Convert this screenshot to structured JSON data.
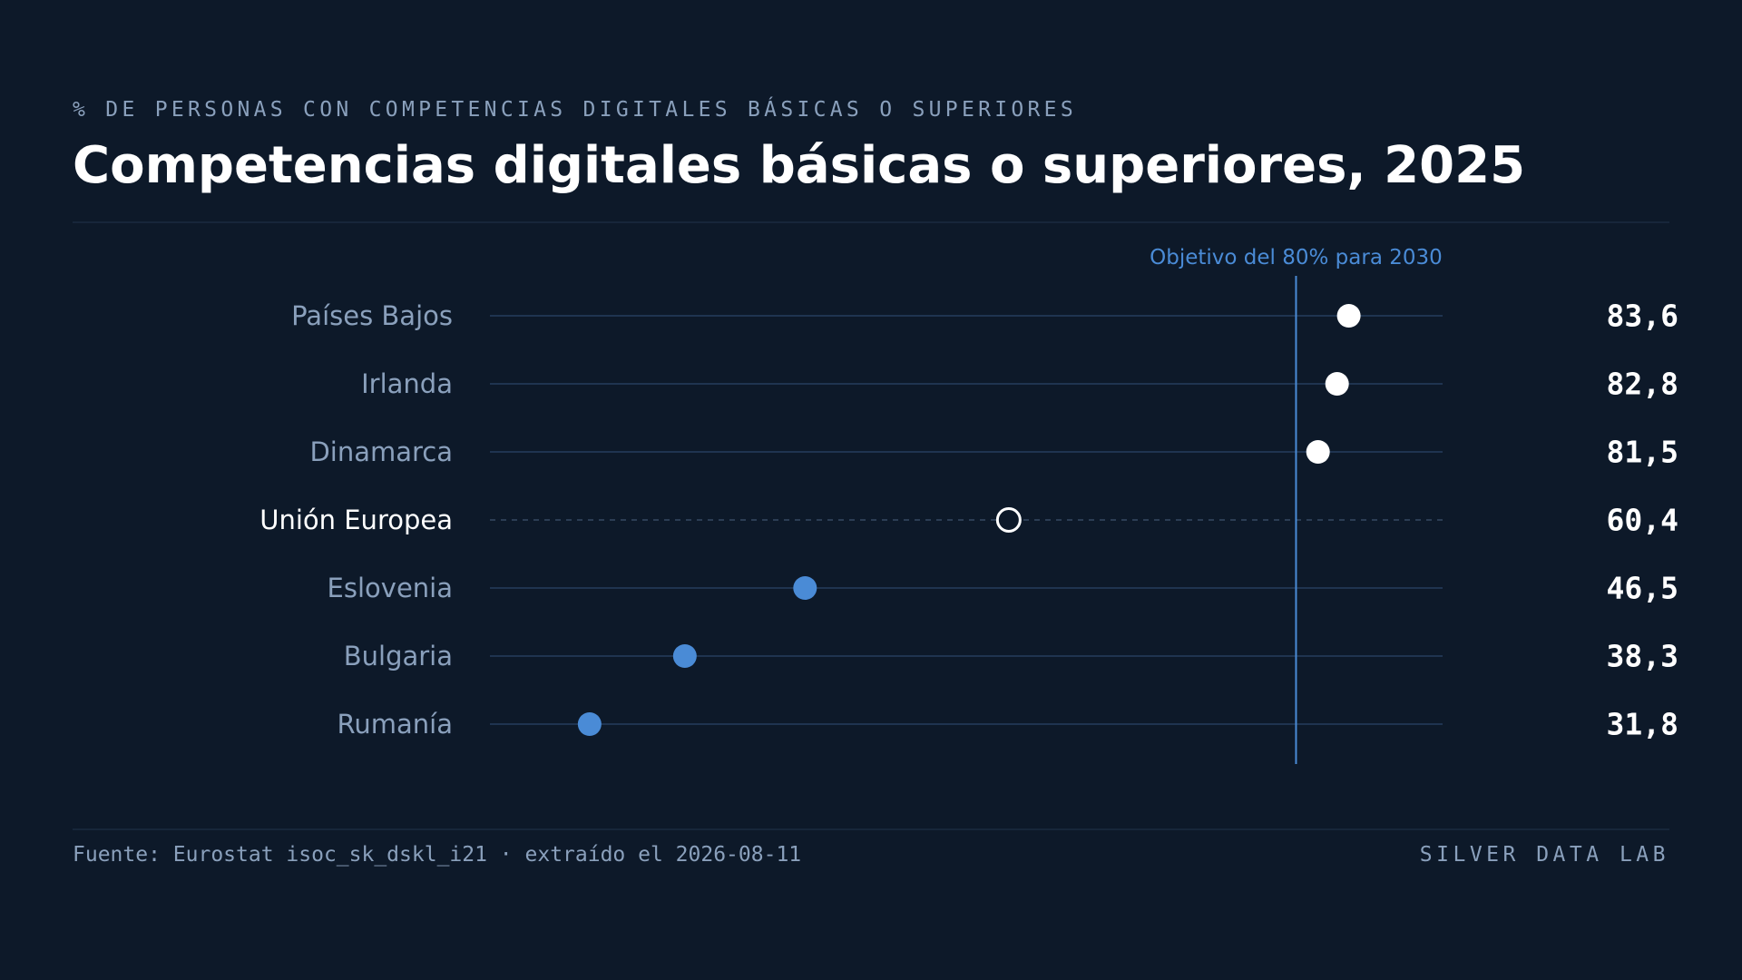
{
  "header": {
    "kicker": "% DE PERSONAS CON COMPETENCIAS DIGITALES BÁSICAS O SUPERIORES",
    "title": "Competencias digitales básicas o superiores, 2025"
  },
  "footer": {
    "source": "Fuente: Eurostat isoc_sk_dskl_i21 · extraído el 2026-08-11",
    "brand": "SILVER DATA LAB"
  },
  "colors": {
    "background": "#0d1929",
    "above_target": "#ffffff",
    "below_target": "#4a8bd6",
    "reference_outline": "#ffffff",
    "target_line": "#4a8bd6",
    "label": "#8aa0bc",
    "label_highlight": "#ffffff",
    "value": "#ffffff"
  },
  "chart_data": {
    "type": "dot",
    "title": "Competencias digitales básicas o superiores, 2025",
    "subtitle": "% DE PERSONAS CON COMPETENCIAS DIGITALES BÁSICAS O SUPERIORES",
    "xlim": [
      25,
      90
    ],
    "grid": false,
    "categories": [
      "Países Bajos",
      "Irlanda",
      "Dinamarca",
      "Unión Europea",
      "Eslovenia",
      "Bulgaria",
      "Rumanía"
    ],
    "values": [
      83.6,
      82.8,
      81.5,
      60.4,
      46.5,
      38.3,
      31.8
    ],
    "value_labels": [
      "83,6",
      "82,8",
      "81,5",
      "60,4",
      "46,5",
      "38,3",
      "31,8"
    ],
    "reference_category": "Unión Europea",
    "target": {
      "value": 80,
      "label": "Objetivo del 80% para 2030"
    }
  }
}
